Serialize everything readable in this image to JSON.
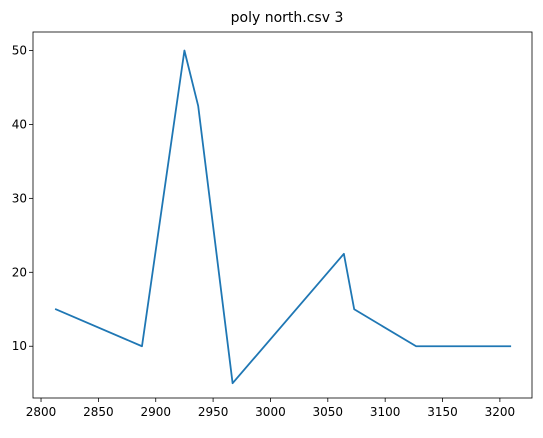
{
  "chart_data": {
    "type": "line",
    "title": "poly north.csv 3",
    "xlabel": "",
    "ylabel": "",
    "xlim": [
      2793,
      3228
    ],
    "ylim": [
      3,
      52.5
    ],
    "xticks": [
      2800,
      2850,
      2900,
      2950,
      3000,
      3050,
      3100,
      3150,
      3200
    ],
    "yticks": [
      10,
      20,
      30,
      40,
      50
    ],
    "grid": false,
    "series": [
      {
        "color": "#1f77b4",
        "x": [
          2813,
          2888,
          2925,
          2937,
          2967,
          3064,
          3073,
          3127,
          3209
        ],
        "y": [
          15,
          10,
          50,
          42.5,
          5,
          22.5,
          15,
          10,
          10
        ]
      }
    ]
  }
}
